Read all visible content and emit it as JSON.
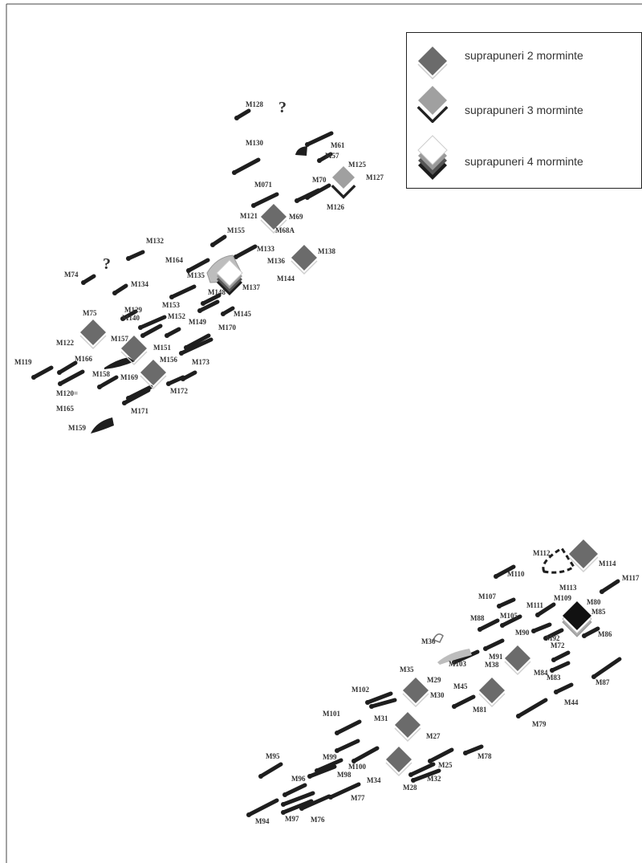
{
  "legend": {
    "items": [
      {
        "label": "suprapuneri 2 morminte",
        "colors": [
          "#6b6b6b"
        ]
      },
      {
        "label": "suprapuneri 3 morminte",
        "colors": [
          "#222222",
          "#ffffff",
          "#a0a0a0"
        ]
      },
      {
        "label": "suprapuneri 4 morminte",
        "colors": [
          "#1c1c1c",
          "#555555",
          "#9a9a9a",
          "#ffffff"
        ]
      }
    ]
  },
  "question_mark": "?",
  "colors": {
    "grave": "#1e1e1e",
    "overlap2": "#6b6b6b",
    "overlap3": "#a0a0a0",
    "pale": "#bdbdbd"
  },
  "labels": [
    "M128",
    "M130",
    "M61",
    "M57",
    "M125",
    "M70",
    "M127",
    "M126",
    "M071",
    "M121",
    "M69",
    "M68A",
    "M155",
    "M132",
    "M133",
    "M138",
    "M164",
    "M136",
    "M74",
    "M134",
    "M135",
    "M148",
    "M137",
    "M144",
    "M153",
    "M145",
    "M129",
    "M140",
    "M152",
    "M149",
    "M170",
    "M75",
    "M122",
    "M157",
    "M151",
    "M166",
    "M119",
    "M156",
    "M173",
    "M158",
    "M169",
    "M172",
    "M120=",
    "M165",
    "M171",
    "M159",
    "M112",
    "M114",
    "M117",
    "M110",
    "M113",
    "M107",
    "M111",
    "M109",
    "M80",
    "M88",
    "M105",
    "M85",
    "M36",
    "M90",
    "M92",
    "M86",
    "M72",
    "M103",
    "M91",
    "M38",
    "M84",
    "M35",
    "M29",
    "M83",
    "M87",
    "M102",
    "M30",
    "M45",
    "M44",
    "M81",
    "M79",
    "M101",
    "M31",
    "M27",
    "M78",
    "M95",
    "M99",
    "M100",
    "M25",
    "M98",
    "M34",
    "M32",
    "M96",
    "M28",
    "M77",
    "M94",
    "M97",
    "M76"
  ]
}
